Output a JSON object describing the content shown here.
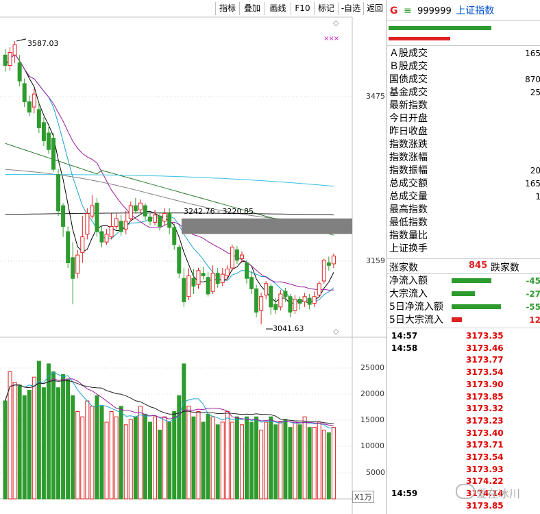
{
  "toolbar": {
    "buttons": [
      "指标",
      "叠加",
      "画线",
      "F10",
      "标记",
      "-自选",
      "返回"
    ]
  },
  "chart_data": {
    "type": "candlestick",
    "annotations": {
      "high_label": "3587.03",
      "low_label": "3041.63",
      "gap_label": "3242.76 - 3220.85",
      "marker": "×××"
    },
    "price_axis_ticks": [
      "3475",
      "3159"
    ],
    "volume_axis_ticks": [
      "25000",
      "20000",
      "15000",
      "10000",
      "5000"
    ],
    "volume_unit": "X1万",
    "candles": [
      {
        "o": 3560,
        "c": 3540,
        "h": 3572,
        "l": 3528
      },
      {
        "o": 3540,
        "c": 3565,
        "h": 3575,
        "l": 3530
      },
      {
        "o": 3560,
        "c": 3580,
        "h": 3587.03,
        "l": 3545
      },
      {
        "o": 3545,
        "c": 3510,
        "h": 3560,
        "l": 3500
      },
      {
        "o": 3505,
        "c": 3470,
        "h": 3515,
        "l": 3460
      },
      {
        "o": 3470,
        "c": 3450,
        "h": 3482,
        "l": 3442
      },
      {
        "o": 3460,
        "c": 3485,
        "h": 3495,
        "l": 3448
      },
      {
        "o": 3455,
        "c": 3420,
        "h": 3470,
        "l": 3410
      },
      {
        "o": 3430,
        "c": 3395,
        "h": 3440,
        "l": 3385
      },
      {
        "o": 3410,
        "c": 3378,
        "h": 3422,
        "l": 3370
      },
      {
        "o": 3400,
        "c": 3340,
        "h": 3410,
        "l": 3335
      },
      {
        "o": 3330,
        "c": 3260,
        "h": 3340,
        "l": 3250
      },
      {
        "o": 3270,
        "c": 3230,
        "h": 3275,
        "l": 3210
      },
      {
        "o": 3220,
        "c": 3160,
        "h": 3230,
        "l": 3150
      },
      {
        "o": 3170,
        "c": 3130,
        "h": 3200,
        "l": 3080
      },
      {
        "o": 3140,
        "c": 3175,
        "h": 3185,
        "l": 3130
      },
      {
        "o": 3180,
        "c": 3210,
        "h": 3250,
        "l": 3160
      },
      {
        "o": 3215,
        "c": 3255,
        "h": 3265,
        "l": 3205
      },
      {
        "o": 3250,
        "c": 3270,
        "h": 3290,
        "l": 3245
      },
      {
        "o": 3275,
        "c": 3220,
        "h": 3285,
        "l": 3210
      },
      {
        "o": 3220,
        "c": 3200,
        "h": 3230,
        "l": 3190
      },
      {
        "o": 3200,
        "c": 3215,
        "h": 3225,
        "l": 3195
      },
      {
        "o": 3210,
        "c": 3230,
        "h": 3255,
        "l": 3205
      },
      {
        "o": 3230,
        "c": 3245,
        "h": 3255,
        "l": 3225
      },
      {
        "o": 3240,
        "c": 3220,
        "h": 3252,
        "l": 3212
      },
      {
        "o": 3225,
        "c": 3240,
        "h": 3260,
        "l": 3215
      },
      {
        "o": 3245,
        "c": 3270,
        "h": 3278,
        "l": 3240
      },
      {
        "o": 3270,
        "c": 3260,
        "h": 3285,
        "l": 3255
      },
      {
        "o": 3262,
        "c": 3275,
        "h": 3282,
        "l": 3256
      },
      {
        "o": 3270,
        "c": 3250,
        "h": 3275,
        "l": 3242
      },
      {
        "o": 3248,
        "c": 3240,
        "h": 3255,
        "l": 3232
      },
      {
        "o": 3238,
        "c": 3252,
        "h": 3262,
        "l": 3232
      },
      {
        "o": 3250,
        "c": 3230,
        "h": 3256,
        "l": 3222
      },
      {
        "o": 3240,
        "c": 3255,
        "h": 3265,
        "l": 3232
      },
      {
        "o": 3255,
        "c": 3228,
        "h": 3265,
        "l": 3215
      },
      {
        "o": 3228,
        "c": 3195,
        "h": 3235,
        "l": 3185
      },
      {
        "o": 3190,
        "c": 3140,
        "h": 3195,
        "l": 3130
      },
      {
        "o": 3130,
        "c": 3085,
        "h": 3150,
        "l": 3075
      },
      {
        "o": 3095,
        "c": 3135,
        "h": 3150,
        "l": 3088
      },
      {
        "o": 3130,
        "c": 3115,
        "h": 3148,
        "l": 3100
      },
      {
        "o": 3118,
        "c": 3145,
        "h": 3150,
        "l": 3110
      },
      {
        "o": 3140,
        "c": 3135,
        "h": 3152,
        "l": 3128
      },
      {
        "o": 3132,
        "c": 3100,
        "h": 3142,
        "l": 3095
      },
      {
        "o": 3105,
        "c": 3140,
        "h": 3155,
        "l": 3100
      },
      {
        "o": 3140,
        "c": 3120,
        "h": 3150,
        "l": 3112
      },
      {
        "o": 3122,
        "c": 3138,
        "h": 3150,
        "l": 3115
      },
      {
        "o": 3135,
        "c": 3148,
        "h": 3155,
        "l": 3128
      },
      {
        "o": 3150,
        "c": 3190,
        "h": 3195,
        "l": 3145
      },
      {
        "o": 3185,
        "c": 3165,
        "h": 3192,
        "l": 3158
      },
      {
        "o": 3168,
        "c": 3175,
        "h": 3182,
        "l": 3160
      },
      {
        "o": 3160,
        "c": 3130,
        "h": 3165,
        "l": 3120
      },
      {
        "o": 3132,
        "c": 3110,
        "h": 3145,
        "l": 3100
      },
      {
        "o": 3110,
        "c": 3065,
        "h": 3118,
        "l": 3055
      },
      {
        "o": 3068,
        "c": 3095,
        "h": 3102,
        "l": 3041.63
      },
      {
        "o": 3098,
        "c": 3120,
        "h": 3125,
        "l": 3090
      },
      {
        "o": 3115,
        "c": 3075,
        "h": 3120,
        "l": 3060
      },
      {
        "o": 3080,
        "c": 3070,
        "h": 3092,
        "l": 3062
      },
      {
        "o": 3075,
        "c": 3100,
        "h": 3108,
        "l": 3068
      },
      {
        "o": 3105,
        "c": 3095,
        "h": 3112,
        "l": 3085
      },
      {
        "o": 3095,
        "c": 3065,
        "h": 3100,
        "l": 3055
      },
      {
        "o": 3068,
        "c": 3090,
        "h": 3098,
        "l": 3062
      },
      {
        "o": 3090,
        "c": 3082,
        "h": 3095,
        "l": 3070
      },
      {
        "o": 3085,
        "c": 3095,
        "h": 3102,
        "l": 3075
      },
      {
        "o": 3092,
        "c": 3080,
        "h": 3100,
        "l": 3070
      },
      {
        "o": 3082,
        "c": 3095,
        "h": 3105,
        "l": 3075
      },
      {
        "o": 3098,
        "c": 3120,
        "h": 3125,
        "l": 3095
      },
      {
        "o": 3125,
        "c": 3165,
        "h": 3168,
        "l": 3120
      },
      {
        "o": 3160,
        "c": 3155,
        "h": 3172,
        "l": 3145
      },
      {
        "o": 3158,
        "c": 3173,
        "h": 3178,
        "l": 3150
      }
    ],
    "volumes": [
      18500,
      24000,
      22000,
      21500,
      19500,
      20500,
      23000,
      26000,
      21000,
      25500,
      24000,
      21000,
      23500,
      22500,
      19500,
      16500,
      15500,
      18500,
      17500,
      19500,
      17500,
      14500,
      16500,
      15500,
      17500,
      14000,
      15000,
      15500,
      17500,
      16000,
      14500,
      15500,
      13000,
      15500,
      14500,
      16500,
      19500,
      25500,
      17500,
      15500,
      16500,
      14500,
      16000,
      15500,
      14000,
      14500,
      16500,
      14500,
      15500,
      14000,
      15500,
      14500,
      15500,
      13000,
      14500,
      15500,
      14000,
      14500,
      15000,
      13500,
      14500,
      14000,
      15500,
      13500,
      13500,
      14500,
      13000,
      12500,
      13500
    ]
  },
  "panel": {
    "header": {
      "g": "G",
      "eq": "≡",
      "code": "999999",
      "name": "上证指数"
    },
    "rows": [
      {
        "label": "Ａ股成交",
        "value": "165"
      },
      {
        "label": "Ｂ股成交",
        "value": ""
      },
      {
        "label": "国债成交",
        "value": "870"
      },
      {
        "label": "基金成交",
        "value": "25"
      },
      {
        "label": "最新指数",
        "value": ""
      },
      {
        "label": "今日开盘",
        "value": ""
      },
      {
        "label": "昨日收盘",
        "value": ""
      },
      {
        "label": "指数涨跌",
        "value": ""
      },
      {
        "label": "指数涨幅",
        "value": ""
      },
      {
        "label": "指数振幅",
        "value": "20"
      },
      {
        "label": "总成交额",
        "value": "165"
      },
      {
        "label": "总成交量",
        "value": "1"
      },
      {
        "label": "最高指数",
        "value": ""
      },
      {
        "label": "最低指数",
        "value": ""
      },
      {
        "label": "指数量比",
        "value": ""
      },
      {
        "label": "上证换手",
        "value": ""
      }
    ],
    "updown": {
      "up_label": "涨家数",
      "up_count": "845",
      "down_label": "跌家数"
    },
    "flows": [
      {
        "label": "净流入额",
        "value": "-45",
        "bar_fraction": 0.6,
        "color": "#2e9b2e"
      },
      {
        "label": "大宗流入",
        "value": "-27",
        "bar_fraction": 0.35,
        "color": "#2e9b2e"
      },
      {
        "label": "5日净流入额",
        "value": "-55",
        "bar_fraction": 0.75,
        "color": "#2e9b2e"
      },
      {
        "label": "5日大宗流入",
        "value": "12",
        "bar_fraction": 0.16,
        "color": "#e02020"
      }
    ],
    "ticks": [
      {
        "time": "14:57",
        "price": "3173.35"
      },
      {
        "time": "14:58",
        "price": "3173.46"
      },
      {
        "time": "",
        "price": "3173.77"
      },
      {
        "time": "",
        "price": "3173.54"
      },
      {
        "time": "",
        "price": "3173.90"
      },
      {
        "time": "",
        "price": "3173.85"
      },
      {
        "time": "",
        "price": "3173.32"
      },
      {
        "time": "",
        "price": "3173.23"
      },
      {
        "time": "",
        "price": "3173.40"
      },
      {
        "time": "",
        "price": "3173.71"
      },
      {
        "time": "",
        "price": "3173.54"
      },
      {
        "time": "",
        "price": "3173.93"
      },
      {
        "time": "",
        "price": "3174.22"
      },
      {
        "time": "14:59",
        "price": "3174.14"
      },
      {
        "time": "",
        "price": "3173.85"
      }
    ],
    "watermark": "爱在冰川"
  },
  "colors": {
    "up": "#e02020",
    "down": "#2e9b2e",
    "ma5": "#000000",
    "ma10": "#1aa0d0",
    "ma20": "#9b1aa0",
    "ma60": "#808080",
    "ma120": "#2a7a2a",
    "ma250": "#30c0e0",
    "ma_long": "#202020"
  }
}
